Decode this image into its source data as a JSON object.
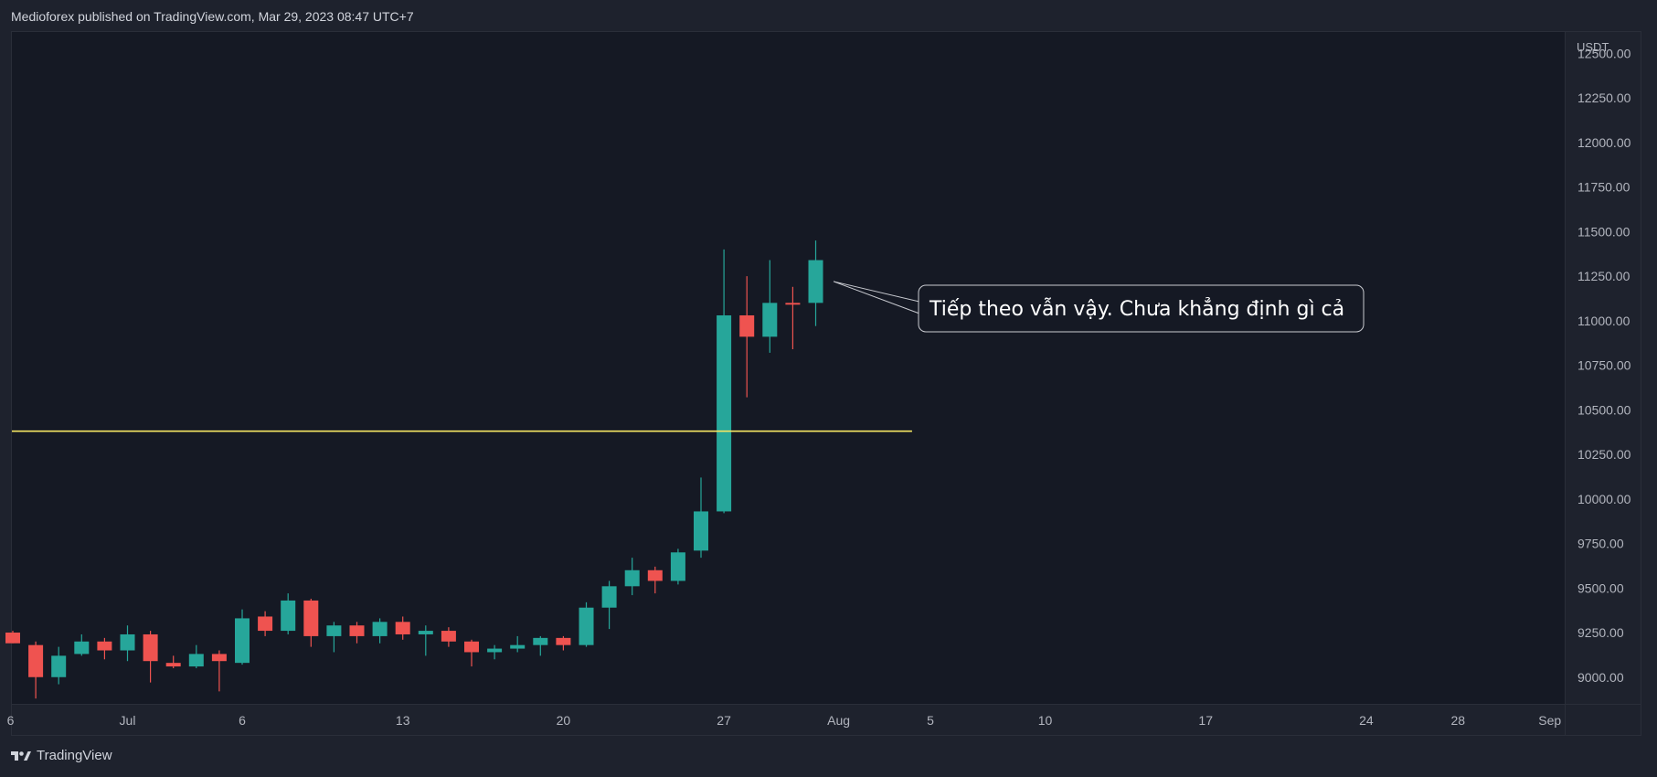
{
  "header": {
    "publish_line": "Medioforex published on TradingView.com, Mar 29, 2023 08:47 UTC+7"
  },
  "footer": {
    "brand": "TradingView",
    "logo_icon": "tradingview-logo-icon"
  },
  "colors": {
    "background": "#1e222d",
    "plot_background": "#151924",
    "up": "#26a69a",
    "down": "#ef5350",
    "horizontal_line": "#f5e663",
    "text": "#d1d4dc",
    "axis_text": "#b2b5be",
    "grid": "#2a2e39"
  },
  "chart_data": {
    "type": "candlestick",
    "currency": "USDT",
    "ylim": [
      8850,
      12620
    ],
    "y_ticks": [
      9000,
      9250,
      9500,
      9750,
      10000,
      10250,
      10500,
      10750,
      11000,
      11250,
      11500,
      11750,
      12000,
      12250,
      12500
    ],
    "y_tick_labels": [
      "9000.00",
      "9250.00",
      "9500.00",
      "9750.00",
      "10000.00",
      "10250.00",
      "10500.00",
      "10750.00",
      "11000.00",
      "11250.00",
      "11500.00",
      "11750.00",
      "12000.00",
      "12250.00",
      "12500.00"
    ],
    "x_ticks": [
      {
        "label": "6",
        "day": -0.1
      },
      {
        "label": "Jul",
        "day": 5
      },
      {
        "label": "6",
        "day": 10
      },
      {
        "label": "13",
        "day": 17
      },
      {
        "label": "20",
        "day": 24
      },
      {
        "label": "27",
        "day": 31
      },
      {
        "label": "Aug",
        "day": 36
      },
      {
        "label": "5",
        "day": 40
      },
      {
        "label": "10",
        "day": 45
      },
      {
        "label": "17",
        "day": 52
      },
      {
        "label": "24",
        "day": 59
      },
      {
        "label": "28",
        "day": 63
      },
      {
        "label": "Sep",
        "day": 67
      }
    ],
    "candles": [
      {
        "day": 0,
        "o": 9250,
        "h": 9260,
        "l": 9190,
        "c": 9190
      },
      {
        "day": 1,
        "o": 9180,
        "h": 9200,
        "l": 8880,
        "c": 9000
      },
      {
        "day": 2,
        "o": 9000,
        "h": 9170,
        "l": 8960,
        "c": 9120
      },
      {
        "day": 3,
        "o": 9130,
        "h": 9240,
        "l": 9120,
        "c": 9200
      },
      {
        "day": 4,
        "o": 9200,
        "h": 9220,
        "l": 9100,
        "c": 9150
      },
      {
        "day": 5,
        "o": 9150,
        "h": 9290,
        "l": 9090,
        "c": 9240
      },
      {
        "day": 6,
        "o": 9240,
        "h": 9260,
        "l": 8970,
        "c": 9090
      },
      {
        "day": 7,
        "o": 9080,
        "h": 9120,
        "l": 9050,
        "c": 9060
      },
      {
        "day": 8,
        "o": 9060,
        "h": 9180,
        "l": 9050,
        "c": 9130
      },
      {
        "day": 9,
        "o": 9130,
        "h": 9150,
        "l": 8920,
        "c": 9090
      },
      {
        "day": 10,
        "o": 9080,
        "h": 9380,
        "l": 9070,
        "c": 9330
      },
      {
        "day": 11,
        "o": 9340,
        "h": 9370,
        "l": 9230,
        "c": 9260
      },
      {
        "day": 12,
        "o": 9260,
        "h": 9470,
        "l": 9240,
        "c": 9430
      },
      {
        "day": 13,
        "o": 9430,
        "h": 9440,
        "l": 9170,
        "c": 9230
      },
      {
        "day": 14,
        "o": 9230,
        "h": 9310,
        "l": 9140,
        "c": 9290
      },
      {
        "day": 15,
        "o": 9290,
        "h": 9310,
        "l": 9190,
        "c": 9230
      },
      {
        "day": 16,
        "o": 9230,
        "h": 9330,
        "l": 9190,
        "c": 9310
      },
      {
        "day": 17,
        "o": 9310,
        "h": 9340,
        "l": 9210,
        "c": 9240
      },
      {
        "day": 18,
        "o": 9240,
        "h": 9290,
        "l": 9120,
        "c": 9260
      },
      {
        "day": 19,
        "o": 9260,
        "h": 9280,
        "l": 9170,
        "c": 9200
      },
      {
        "day": 20,
        "o": 9200,
        "h": 9210,
        "l": 9060,
        "c": 9140
      },
      {
        "day": 21,
        "o": 9140,
        "h": 9180,
        "l": 9100,
        "c": 9160
      },
      {
        "day": 22,
        "o": 9160,
        "h": 9230,
        "l": 9140,
        "c": 9180
      },
      {
        "day": 23,
        "o": 9180,
        "h": 9230,
        "l": 9120,
        "c": 9220
      },
      {
        "day": 24,
        "o": 9220,
        "h": 9230,
        "l": 9150,
        "c": 9180
      },
      {
        "day": 25,
        "o": 9180,
        "h": 9420,
        "l": 9170,
        "c": 9390
      },
      {
        "day": 26,
        "o": 9390,
        "h": 9540,
        "l": 9270,
        "c": 9510
      },
      {
        "day": 27,
        "o": 9510,
        "h": 9670,
        "l": 9460,
        "c": 9600
      },
      {
        "day": 28,
        "o": 9600,
        "h": 9620,
        "l": 9470,
        "c": 9540
      },
      {
        "day": 29,
        "o": 9540,
        "h": 9720,
        "l": 9520,
        "c": 9700
      },
      {
        "day": 30,
        "o": 9710,
        "h": 10120,
        "l": 9670,
        "c": 9930
      },
      {
        "day": 31,
        "o": 9930,
        "h": 11400,
        "l": 9920,
        "c": 11030
      },
      {
        "day": 32,
        "o": 11030,
        "h": 11250,
        "l": 10570,
        "c": 10910
      },
      {
        "day": 33,
        "o": 10910,
        "h": 11340,
        "l": 10820,
        "c": 11100
      },
      {
        "day": 34,
        "o": 11100,
        "h": 11190,
        "l": 10840,
        "c": 11090
      },
      {
        "day": 35,
        "o": 11100,
        "h": 11450,
        "l": 10970,
        "c": 11340
      }
    ],
    "horizontal_line": {
      "value": 10380,
      "from_day": -0.1,
      "to_day": 39.2
    },
    "annotation": {
      "text": "Tiếp theo vẫn vậy. Chưa khẳng định gì cả",
      "anchor_day": 35.7,
      "anchor_value": 11220
    }
  }
}
